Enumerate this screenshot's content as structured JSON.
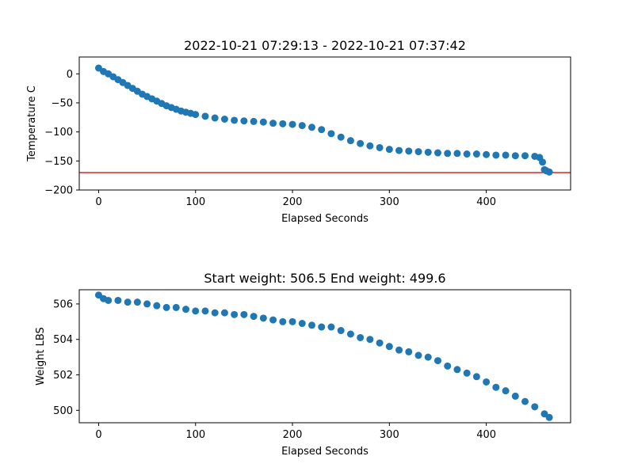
{
  "chart_data": [
    {
      "type": "scatter",
      "title": "2022-10-21 07:29:13 - 2022-10-21 07:37:42",
      "xlabel": "Elapsed Seconds",
      "ylabel": "Temperature C",
      "xlim": [
        -20,
        487
      ],
      "ylim": [
        -200,
        29
      ],
      "xticks": [
        0,
        100,
        200,
        300,
        400
      ],
      "yticks": [
        0,
        -50,
        -100,
        -150,
        -200
      ],
      "grid": false,
      "point_color": "#1f77b4",
      "reference_line": {
        "y": -170,
        "color": "#d62728"
      },
      "x": [
        0,
        5,
        10,
        15,
        20,
        25,
        30,
        35,
        40,
        45,
        50,
        55,
        60,
        65,
        70,
        75,
        80,
        85,
        90,
        95,
        100,
        110,
        120,
        130,
        140,
        150,
        160,
        170,
        180,
        190,
        200,
        210,
        220,
        230,
        240,
        250,
        260,
        270,
        280,
        290,
        300,
        310,
        320,
        330,
        340,
        350,
        360,
        370,
        380,
        390,
        400,
        410,
        420,
        430,
        440,
        450,
        455,
        458,
        460,
        462,
        465
      ],
      "y": [
        10,
        4,
        0,
        -5,
        -10,
        -15,
        -20,
        -25,
        -30,
        -35,
        -39,
        -43,
        -47,
        -51,
        -55,
        -58,
        -61,
        -64,
        -66,
        -68,
        -70,
        -73,
        -76,
        -78,
        -80,
        -81,
        -82,
        -83,
        -85,
        -86,
        -87,
        -89,
        -92,
        -96,
        -103,
        -109,
        -115,
        -120,
        -124,
        -127,
        -130,
        -132,
        -133,
        -134,
        -135,
        -136,
        -137,
        -137,
        -138,
        -138,
        -139,
        -140,
        -140,
        -141,
        -141,
        -142,
        -144,
        -152,
        -165,
        -167,
        -169
      ]
    },
    {
      "type": "scatter",
      "title": "Start weight: 506.5 End weight: 499.6",
      "xlabel": "Elapsed Seconds",
      "ylabel": "Weight LBS",
      "xlim": [
        -20,
        487
      ],
      "ylim": [
        499.3,
        506.8
      ],
      "xticks": [
        0,
        100,
        200,
        300,
        400
      ],
      "yticks": [
        500,
        502,
        504,
        506
      ],
      "grid": false,
      "point_color": "#1f77b4",
      "x": [
        0,
        5,
        10,
        20,
        30,
        40,
        50,
        60,
        70,
        80,
        90,
        100,
        110,
        120,
        130,
        140,
        150,
        160,
        170,
        180,
        190,
        200,
        210,
        220,
        230,
        240,
        250,
        260,
        270,
        280,
        290,
        300,
        310,
        320,
        330,
        340,
        350,
        360,
        370,
        380,
        390,
        400,
        410,
        420,
        430,
        440,
        450,
        460,
        465
      ],
      "y": [
        506.5,
        506.3,
        506.2,
        506.2,
        506.1,
        506.1,
        506.0,
        505.9,
        505.8,
        505.8,
        505.7,
        505.6,
        505.6,
        505.5,
        505.5,
        505.4,
        505.4,
        505.3,
        505.2,
        505.1,
        505.0,
        505.0,
        504.9,
        504.8,
        504.7,
        504.7,
        504.5,
        504.3,
        504.1,
        504.0,
        503.8,
        503.6,
        503.4,
        503.3,
        503.1,
        503.0,
        502.8,
        502.5,
        502.3,
        502.1,
        501.9,
        501.6,
        501.3,
        501.1,
        500.8,
        500.5,
        500.2,
        499.8,
        499.6
      ]
    }
  ]
}
